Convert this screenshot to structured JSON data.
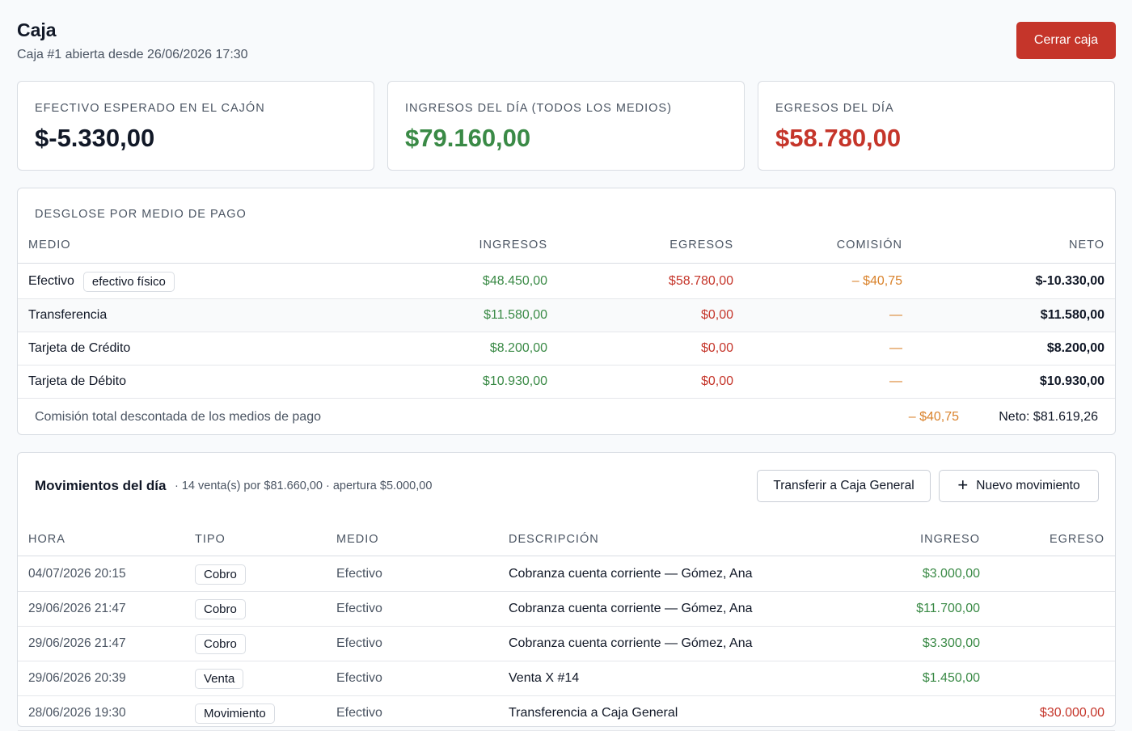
{
  "header": {
    "title": "Caja",
    "subtitle": "Caja #1 abierta desde 26/06/2026 17:30",
    "close_button": "Cerrar caja"
  },
  "stats": [
    {
      "label": "EFECTIVO ESPERADO EN EL CAJÓN",
      "value": "$-5.330,00",
      "color": "#111827"
    },
    {
      "label": "INGRESOS DEL DÍA (TODOS LOS MEDIOS)",
      "value": "$79.160,00",
      "color": "#3a8a46"
    },
    {
      "label": "EGRESOS DEL DÍA",
      "value": "$58.780,00",
      "color": "#c5352a"
    }
  ],
  "breakdown": {
    "title": "DESGLOSE POR MEDIO DE PAGO",
    "columns": [
      "MEDIO",
      "INGRESOS",
      "EGRESOS",
      "COMISIÓN",
      "NETO"
    ],
    "rows": [
      {
        "medio": "Efectivo",
        "tag": "efectivo físico",
        "ingresos": "$48.450,00",
        "egresos": "$58.780,00",
        "comision": "– $40,75",
        "neto": "$-10.330,00"
      },
      {
        "medio": "Transferencia",
        "ingresos": "$11.580,00",
        "egresos": "$0,00",
        "comision": "—",
        "neto": "$11.580,00"
      },
      {
        "medio": "Tarjeta de Crédito",
        "ingresos": "$8.200,00",
        "egresos": "$0,00",
        "comision": "—",
        "neto": "$8.200,00"
      },
      {
        "medio": "Tarjeta de Débito",
        "ingresos": "$10.930,00",
        "egresos": "$0,00",
        "comision": "—",
        "neto": "$10.930,00"
      }
    ],
    "footer": {
      "label": "Comisión total descontada de los medios de pago",
      "comision": "– $40,75",
      "neto": "Neto: $81.619,26"
    }
  },
  "movements": {
    "title": "Movimientos del día",
    "subtitle": "· 14 venta(s) por $81.660,00 · apertura $5.000,00",
    "transfer_button": "Transferir a Caja General",
    "new_button": "Nuevo movimiento",
    "columns": [
      "HORA",
      "TIPO",
      "MEDIO",
      "DESCRIPCIÓN",
      "INGRESO",
      "EGRESO"
    ],
    "rows": [
      {
        "hora": "04/07/2026 20:15",
        "tipo": "Cobro",
        "medio": "Efectivo",
        "descripcion": "Cobranza cuenta corriente — Gómez, Ana",
        "ingreso": "$3.000,00",
        "egreso": ""
      },
      {
        "hora": "29/06/2026 21:47",
        "tipo": "Cobro",
        "medio": "Efectivo",
        "descripcion": "Cobranza cuenta corriente — Gómez, Ana",
        "ingreso": "$11.700,00",
        "egreso": ""
      },
      {
        "hora": "29/06/2026 21:47",
        "tipo": "Cobro",
        "medio": "Efectivo",
        "descripcion": "Cobranza cuenta corriente — Gómez, Ana",
        "ingreso": "$3.300,00",
        "egreso": ""
      },
      {
        "hora": "29/06/2026 20:39",
        "tipo": "Venta",
        "medio": "Efectivo",
        "descripcion": "Venta X #14",
        "ingreso": "$1.450,00",
        "egreso": ""
      },
      {
        "hora": "28/06/2026 19:30",
        "tipo": "Movimiento",
        "medio": "Efectivo",
        "descripcion": "Transferencia a Caja General",
        "ingreso": "",
        "egreso": "$30.000,00"
      }
    ]
  }
}
